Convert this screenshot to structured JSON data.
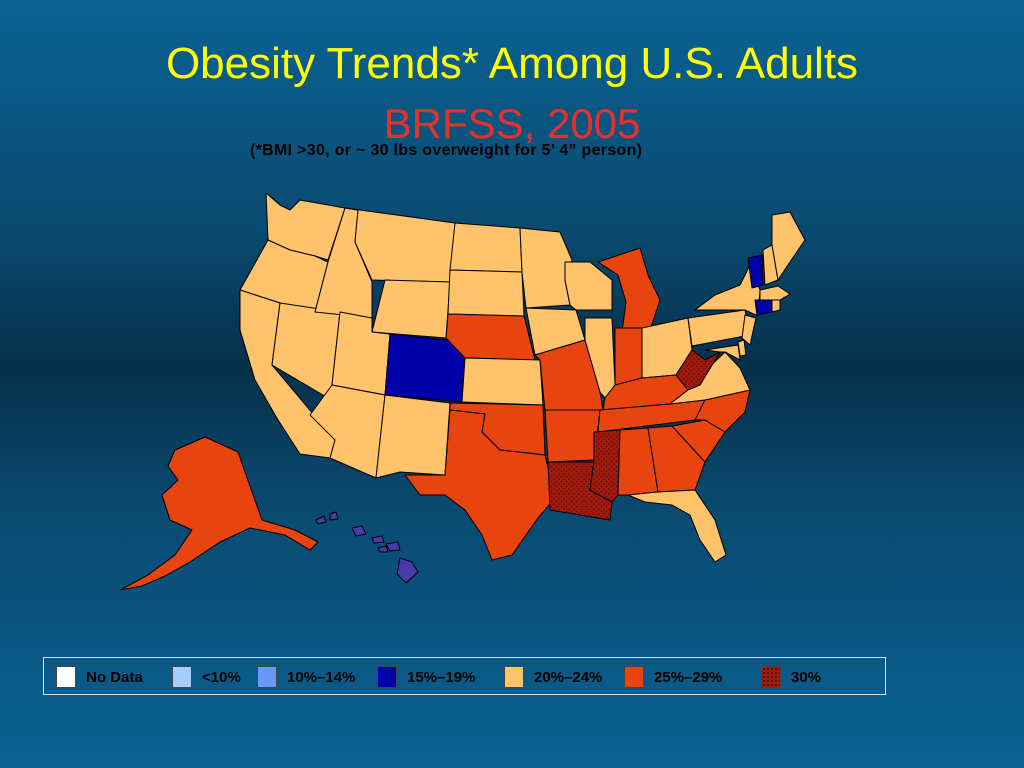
{
  "slide": {
    "title": "Obesity Trends* Among U.S. Adults",
    "subtitle": "BRFSS, 2005",
    "note": "(*BMI >30, or ~ 30 lbs overweight for 5’ 4” person)"
  },
  "legend": [
    {
      "label": "No Data",
      "color": "#ffffff",
      "pattern": false
    },
    {
      "label": "<10%",
      "color": "#a6ccff",
      "pattern": false
    },
    {
      "label": "10%–14%",
      "color": "#6699ff",
      "pattern": false
    },
    {
      "label": "15%–19%",
      "color": "#0000aa",
      "pattern": false
    },
    {
      "label": "20%–24%",
      "color": "#ffc36b",
      "pattern": false
    },
    {
      "label": "25%–29%",
      "color": "#e8440f",
      "pattern": false
    },
    {
      "label": "30%",
      "color": "#a11a0e",
      "pattern": true
    }
  ],
  "states": {
    "WA": "20%–24%",
    "OR": "20%–24%",
    "CA": "20%–24%",
    "NV": "20%–24%",
    "ID": "20%–24%",
    "MT": "20%–24%",
    "WY": "20%–24%",
    "UT": "20%–24%",
    "AZ": "20%–24%",
    "CO": "15%–19%",
    "NM": "20%–24%",
    "ND": "20%–24%",
    "SD": "20%–24%",
    "NE": "25%–29%",
    "KS": "20%–24%",
    "OK": "25%–29%",
    "TX": "25%–29%",
    "MN": "20%–24%",
    "IA": "20%–24%",
    "MO": "25%–29%",
    "AR": "25%–29%",
    "LA": "30%",
    "WI": "20%–24%",
    "IL": "20%–24%",
    "MI": "25%–29%",
    "IN": "25%–29%",
    "OH": "20%–24%",
    "KY": "25%–29%",
    "TN": "25%–29%",
    "MS": "30%",
    "AL": "25%–29%",
    "GA": "25%–29%",
    "FL": "20%–24%",
    "SC": "25%–29%",
    "NC": "25%–29%",
    "VA": "20%–24%",
    "WV": "30%",
    "PA": "20%–24%",
    "NY": "20%–24%",
    "VT": "15%–19%",
    "NH": "20%–24%",
    "ME": "20%–24%",
    "MA": "20%–24%",
    "CT": "15%–19%",
    "RI": "20%–24%",
    "NJ": "20%–24%",
    "DE": "20%–24%",
    "MD": "20%–24%",
    "AK": "25%–29%",
    "HI": "15%–19%"
  }
}
